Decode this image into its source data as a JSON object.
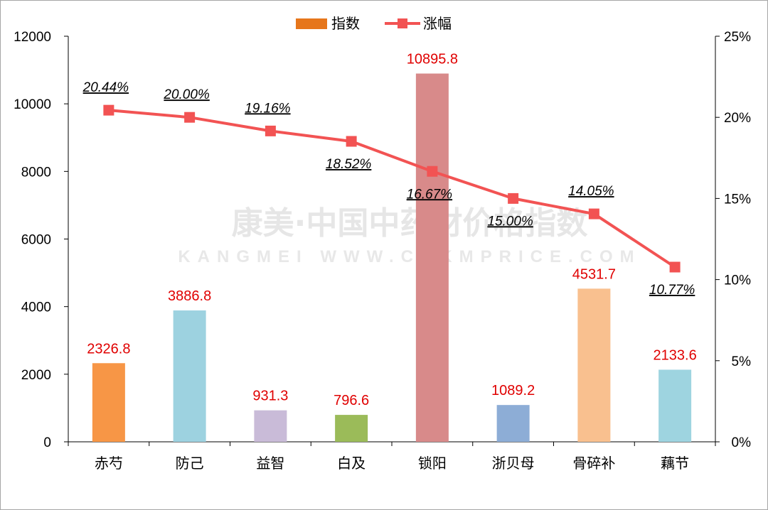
{
  "watermark": {
    "line1": "康美·中国中药材价格指数",
    "line2": "KANGMEI WWW.CNKMPRICE.COM"
  },
  "legend": {
    "bar_label": "指数",
    "line_label": "涨幅"
  },
  "colors": {
    "line": "#f25353",
    "legend_bar": "#e6761b",
    "label_red": "#e00000"
  },
  "chart_data": {
    "type": "bar",
    "categories": [
      "赤芍",
      "防己",
      "益智",
      "白及",
      "锁阳",
      "浙贝母",
      "骨碎补",
      "藕节"
    ],
    "series": [
      {
        "name": "指数",
        "type": "bar",
        "axis": "left",
        "values": [
          2326.8,
          3886.8,
          931.3,
          796.6,
          10895.8,
          1089.2,
          4531.7,
          2133.6
        ],
        "value_labels": [
          "2326.8",
          "3886.8",
          "931.3",
          "796.6",
          "10895.8",
          "1089.2",
          "4531.7",
          "2133.6"
        ],
        "colors": [
          "#f79646",
          "#9dd2e0",
          "#c9bbd8",
          "#9bbb59",
          "#d88a8a",
          "#8dadd6",
          "#f9c08f",
          "#9ed4e0"
        ]
      },
      {
        "name": "涨幅",
        "type": "line",
        "axis": "right",
        "values": [
          20.44,
          20.0,
          19.16,
          18.52,
          16.67,
          15.0,
          14.05,
          10.77
        ],
        "value_labels": [
          "20.44%",
          "20.00%",
          "19.16%",
          "18.52%",
          "16.67%",
          "15.00%",
          "14.05%",
          "10.77%"
        ],
        "label_side": [
          "above",
          "above",
          "above",
          "below",
          "below",
          "below",
          "above",
          "below"
        ]
      }
    ],
    "y_left": {
      "min": 0,
      "max": 12000,
      "ticks": [
        "0",
        "2000",
        "4000",
        "6000",
        "8000",
        "10000",
        "12000"
      ]
    },
    "y_right": {
      "min": 0,
      "max": 25,
      "ticks": [
        "0%",
        "5%",
        "10%",
        "15%",
        "20%",
        "25%"
      ]
    },
    "legend_position": "top-center",
    "grid": false
  }
}
